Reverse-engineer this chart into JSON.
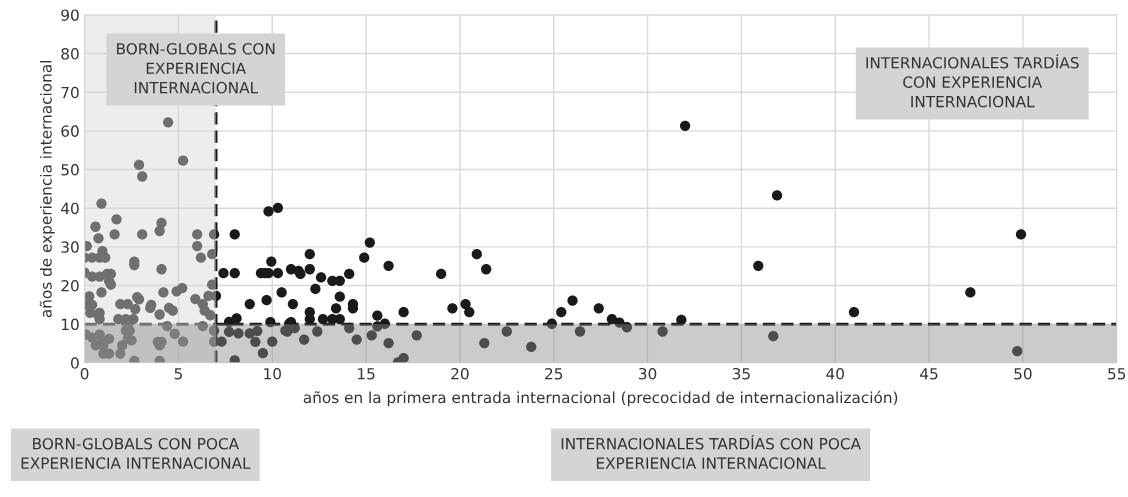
{
  "chart_data": {
    "type": "scatter",
    "xlabel": "años en la primera entrada internacional (precocidad de internacionalización)",
    "ylabel": "años de experiencia internacional",
    "series": [
      {
        "color": "#1a1a1a",
        "x": [
          4.45,
          2.9,
          3.07,
          5.25,
          0.9,
          1.7,
          0.58,
          0.74,
          1.6,
          3.07,
          4.1,
          4.0,
          6.0,
          6.9,
          6.0,
          6.2,
          6.8,
          0.12,
          0.0,
          0.4,
          0.8,
          0.95,
          1.1,
          2.65,
          2.65,
          4.1,
          0.0,
          0.4,
          0.8,
          1.2,
          1.4,
          1.3,
          1.4,
          0.0,
          0.25,
          0.4,
          0.3,
          0.8,
          0.9,
          1.9,
          2.3,
          2.8,
          2.9,
          2.7,
          3.55,
          3.5,
          4.2,
          4.5,
          4.7,
          4.0,
          4.9,
          5.2,
          5.9,
          6.3,
          6.4,
          6.7,
          6.6,
          6.8,
          7.0,
          1.8,
          2.2,
          2.6,
          0.8,
          0.7,
          0.07,
          0.4,
          0.6,
          0.8,
          0.9,
          1.0,
          1.3,
          1.3,
          1.0,
          1.9,
          2.0,
          2.2,
          2.3,
          2.5,
          2.65,
          2.4,
          3.9,
          4.0,
          4.0,
          4.1,
          4.4,
          4.8,
          5.25,
          6.3,
          6.9,
          6.9,
          7.3,
          7.7,
          8.0,
          8.2,
          8.8,
          9.1,
          9.2,
          9.5,
          10.0,
          10.7,
          7.4,
          8.0,
          8.0,
          8.8,
          9.4,
          9.6,
          9.8,
          9.8,
          10.3,
          9.95,
          10.3,
          10.5,
          9.7,
          11.1,
          11.0,
          11.4,
          7.7,
          8.1,
          9.9,
          11.0,
          15.2,
          12.0,
          14.9,
          16.2,
          12.0,
          11.5,
          12.6,
          13.2,
          13.6,
          14.1,
          12.3,
          13.6,
          14.3,
          14.3,
          13.4,
          12.0,
          17.0,
          15.6,
          19.0,
          20.9,
          21.4,
          19.6,
          20.3,
          20.5,
          25.4,
          26.0,
          27.4,
          28.1,
          28.5,
          24.9,
          12.7,
          13.2,
          13.6,
          12.0,
          10.9,
          16.0,
          15.6,
          10.8,
          11.2,
          11.7,
          12.4,
          14.1,
          14.5,
          15.3,
          16.2,
          16.7,
          17.0,
          17.7,
          21.3,
          22.5,
          23.8,
          26.4,
          28.9,
          32.0,
          36.9,
          35.9,
          49.9,
          47.2,
          41.0,
          31.8,
          30.8,
          36.7,
          49.7
        ],
        "values": [
          62.2,
          51.2,
          48.2,
          52.3,
          41.2,
          37.1,
          35.2,
          32.2,
          33.2,
          33.2,
          36.2,
          34.1,
          33.2,
          33.2,
          30.2,
          27.2,
          28.1,
          30.2,
          27.2,
          27.2,
          27.2,
          28.9,
          27.2,
          26.2,
          25.3,
          24.2,
          23.3,
          22.3,
          22.3,
          23.0,
          23.0,
          21.2,
          20.2,
          15.0,
          17.2,
          15.0,
          12.9,
          12.9,
          18.2,
          15.2,
          15.2,
          17.0,
          16.4,
          13.9,
          15.0,
          14.2,
          18.2,
          14.2,
          13.5,
          12.5,
          18.5,
          19.3,
          16.5,
          15.2,
          13.5,
          12.3,
          17.3,
          20.2,
          17.3,
          11.3,
          11.3,
          11.3,
          11.3,
          12.5,
          7.3,
          6.5,
          4.5,
          7.3,
          5.2,
          2.4,
          6.2,
          2.4,
          4.5,
          2.4,
          4.5,
          8.3,
          6.2,
          5.8,
          0.5,
          8.3,
          5.4,
          4.5,
          0.5,
          5.4,
          9.5,
          7.5,
          5.5,
          9.5,
          8.3,
          5.5,
          5.5,
          8.0,
          0.6,
          7.6,
          7.6,
          5.4,
          8.2,
          2.5,
          5.5,
          8.3,
          23.2,
          23.2,
          33.2,
          15.2,
          23.2,
          23.2,
          23.2,
          39.2,
          40.1,
          26.2,
          23.2,
          18.2,
          16.2,
          15.2,
          24.2,
          23.8,
          10.6,
          11.5,
          10.5,
          10.5,
          31.1,
          28.1,
          27.2,
          25.1,
          24.2,
          23.0,
          22.1,
          21.2,
          21.2,
          23.0,
          19.1,
          17.1,
          15.2,
          14.1,
          14.1,
          13.1,
          13.1,
          12.2,
          23.0,
          28.1,
          24.2,
          14.1,
          15.2,
          13.1,
          13.1,
          16.1,
          14.1,
          11.3,
          10.4,
          10.1,
          11.3,
          11.3,
          11.3,
          11.3,
          10.1,
          10.1,
          9.4,
          8.1,
          9.0,
          6.0,
          8.1,
          9.0,
          6.0,
          7.1,
          5.1,
          0.1,
          1.2,
          7.1,
          5.1,
          8.1,
          4.1,
          8.1,
          9.2,
          61.3,
          43.3,
          25.1,
          33.2,
          18.2,
          13.1,
          11.1,
          8.1,
          6.9,
          3.0
        ]
      }
    ],
    "marker": "circle",
    "xlim": [
      0,
      55
    ],
    "xticks": [
      0,
      5,
      10,
      15,
      20,
      25,
      30,
      35,
      40,
      45,
      50,
      55
    ],
    "ylim": [
      0,
      90
    ],
    "yticks": [
      0,
      10,
      20,
      30,
      40,
      50,
      60,
      70,
      80,
      90
    ],
    "grid": true,
    "ref_lines": [
      {
        "axis": "y",
        "value": 10,
        "color": "#1a1a1a",
        "line_style": "dashed"
      },
      {
        "axis": "x",
        "value": 7,
        "color": "#1a1a1a",
        "line_style": "dashed"
      }
    ],
    "bands": [
      {
        "axis": "x",
        "from": 0,
        "to": 7,
        "color": "#d8d8d8"
      },
      {
        "axis": "y",
        "from": 0,
        "to": 10,
        "color": "#8c8c8c"
      }
    ],
    "annotations": [
      "BORN-GLOBALS CON\nEXPERIENCIA\nINTERNACIONAL",
      "INTERNACIONALES TARDÍAS\nCON EXPERIENCIA\nINTERNACIONAL",
      "INTERNACIONALES TARDÍAS CON POCA\nEXPERIENCIA INTERNACIONAL",
      "BORN-GLOBALS CON POCA\nEXPERIENCIA INTERNACIONAL"
    ]
  }
}
